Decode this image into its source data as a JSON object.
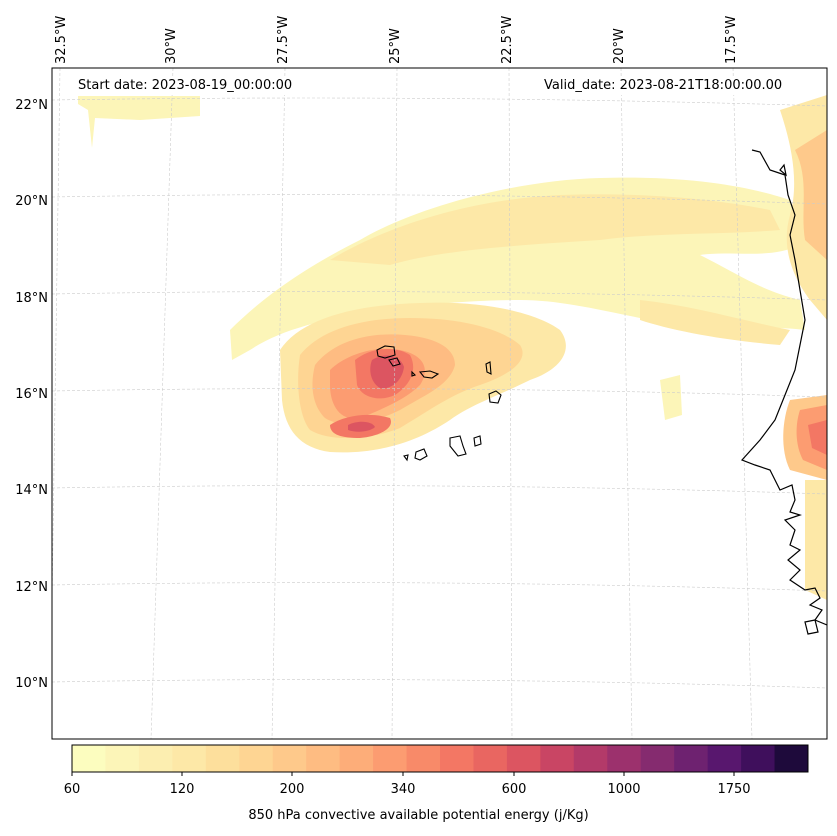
{
  "map": {
    "start_date": "Start date: 2023-08-19_00:00:00",
    "valid_date": "Valid_date: 2023-08-21T18:00:00.00",
    "lon_labels": [
      "32.5°W",
      "30°W",
      "27.5°W",
      "25°W",
      "22.5°W",
      "20°W",
      "17.5°W"
    ],
    "lat_labels": [
      "22°N",
      "20°N",
      "18°N",
      "16°N",
      "14°N",
      "12°N",
      "10°N"
    ],
    "field": "850 hPa convective available potential energy",
    "variable": "CAPE",
    "region": "Cape Verde islands and West African coast"
  },
  "colorbar": {
    "label": "850 hPa convective available potential energy (j/Kg)",
    "tick_labels": [
      "60",
      "120",
      "200",
      "340",
      "600",
      "1000",
      "1750"
    ],
    "colors": [
      "#fcfdbf",
      "#fcf5b8",
      "#fceeb0",
      "#fde8a7",
      "#fddf9c",
      "#fed593",
      "#fec98b",
      "#febc82",
      "#fdad79",
      "#fc9c71",
      "#f88a69",
      "#f37764",
      "#e96661",
      "#dc5561",
      "#c94564",
      "#b33a69",
      "#9c316d",
      "#852b6f",
      "#6e2270",
      "#58176e",
      "#3f0f5c",
      "#1e0a3b"
    ],
    "colormap": "magma_r"
  }
}
